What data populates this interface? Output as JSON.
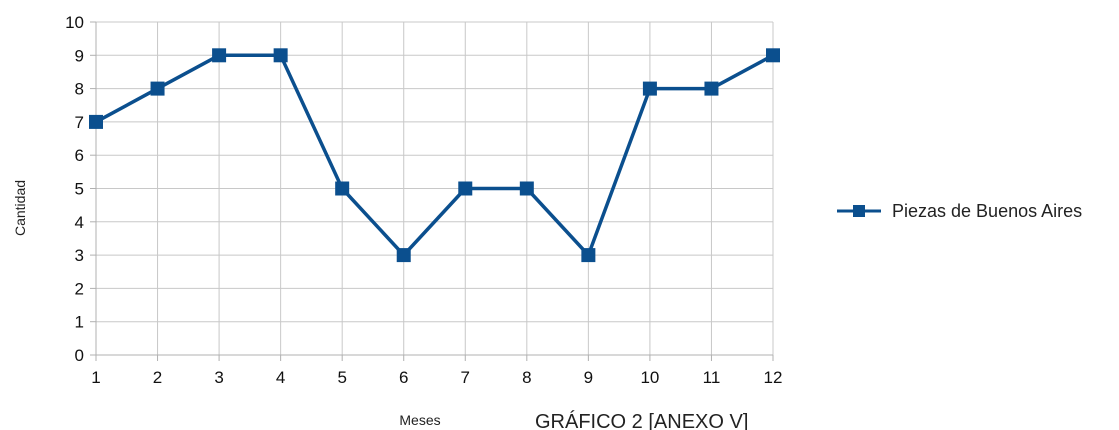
{
  "chart_data": {
    "type": "line",
    "x": [
      1,
      2,
      3,
      4,
      5,
      6,
      7,
      8,
      9,
      10,
      11,
      12
    ],
    "series": [
      {
        "name": "Piezas de Buenos Aires",
        "values": [
          7,
          8,
          9,
          9,
          5,
          3,
          5,
          5,
          3,
          8,
          8,
          9
        ]
      }
    ],
    "xlabel": "Meses",
    "ylabel": "Cantidad",
    "ylim": [
      0,
      10
    ],
    "yticks": [
      0,
      1,
      2,
      3,
      4,
      5,
      6,
      7,
      8,
      9,
      10
    ],
    "grid": true,
    "legend_position": "right",
    "series_color": "#0b4f8e",
    "caption": "GRÁFICO 2 [ANEXO V]"
  }
}
